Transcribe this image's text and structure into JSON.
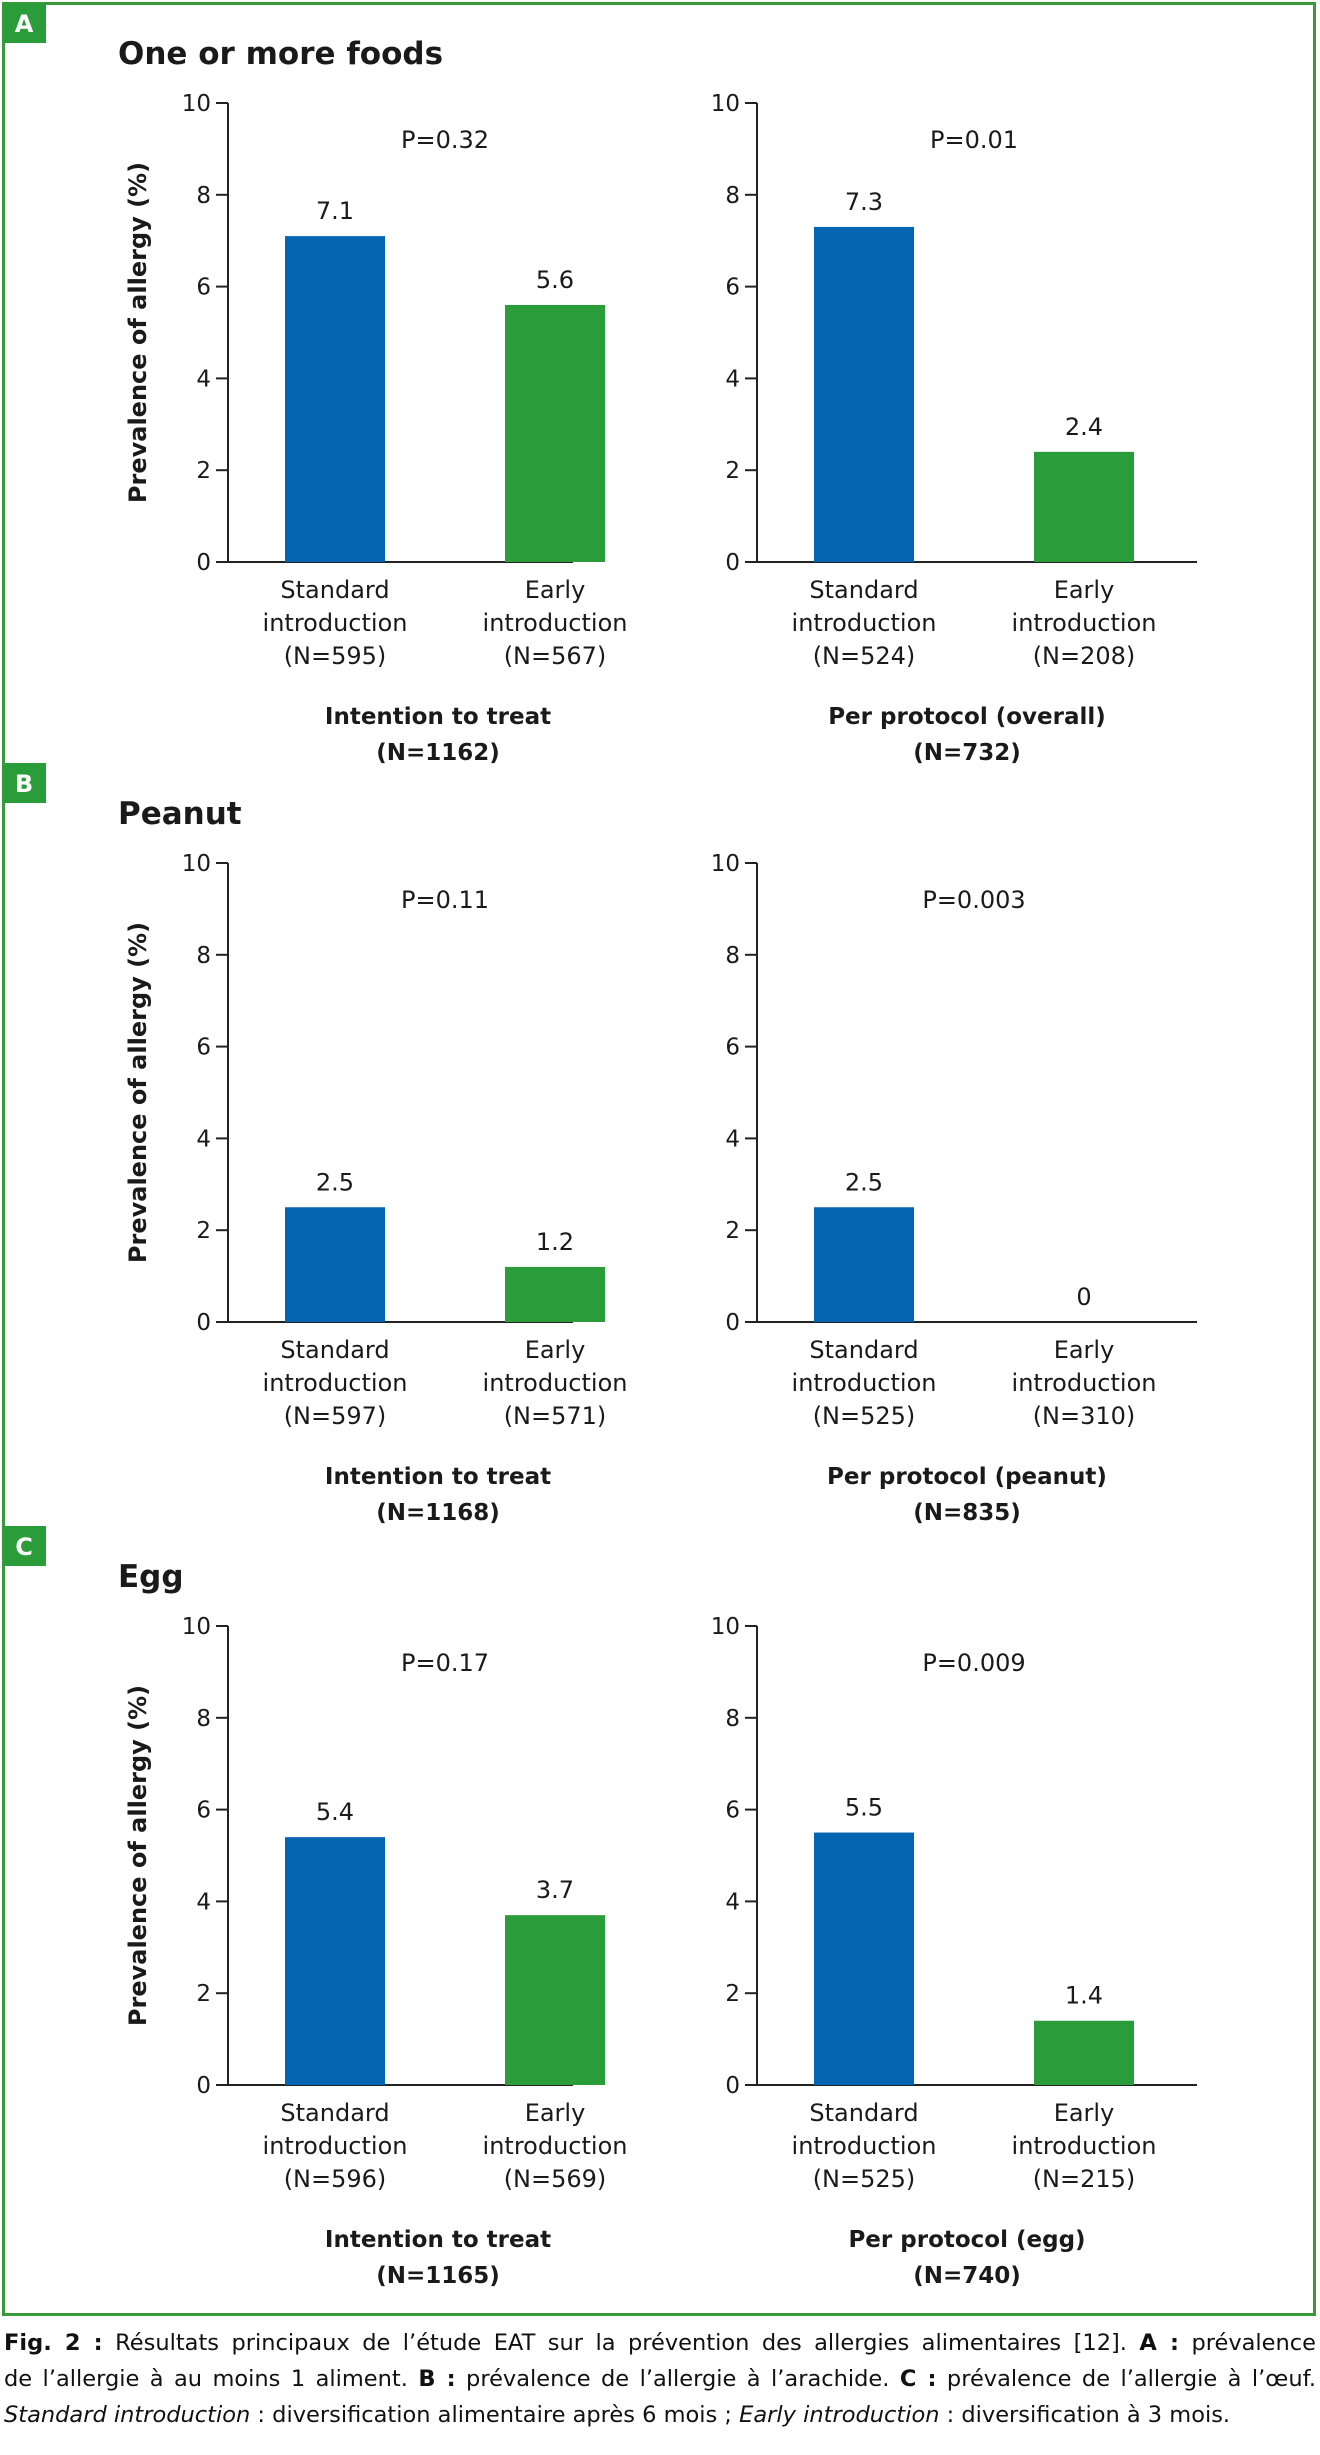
{
  "colors": {
    "standard": "#0565b3",
    "early": "#2b9c3a",
    "frame": "#3a9a3a",
    "badge": "#2b9c3a"
  },
  "chart_data": [
    {
      "panel": "A",
      "title": "One or more foods",
      "type": "bar",
      "ylabel": "Prevalence of allergy (%)",
      "ylim": [
        0,
        10
      ],
      "yticks": [
        0,
        2,
        4,
        6,
        8,
        10
      ],
      "subplots": [
        {
          "pvalue": "P=0.32",
          "group_title": [
            "Intention to treat",
            "(N=1162)"
          ],
          "bars": [
            {
              "label": [
                "Standard",
                "introduction",
                "(N=595)"
              ],
              "value": 7.1,
              "value_label": "7.1",
              "series": "standard"
            },
            {
              "label": [
                "Early",
                "introduction",
                "(N=567)"
              ],
              "value": 5.6,
              "value_label": "5.6",
              "series": "early"
            }
          ]
        },
        {
          "pvalue": "P=0.01",
          "group_title": [
            "Per protocol (overall)",
            "(N=732)"
          ],
          "bars": [
            {
              "label": [
                "Standard",
                "introduction",
                "(N=524)"
              ],
              "value": 7.3,
              "value_label": "7.3",
              "series": "standard"
            },
            {
              "label": [
                "Early",
                "introduction",
                "(N=208)"
              ],
              "value": 2.4,
              "value_label": "2.4",
              "series": "early"
            }
          ]
        }
      ]
    },
    {
      "panel": "B",
      "title": "Peanut",
      "type": "bar",
      "ylabel": "Prevalence of allergy (%)",
      "ylim": [
        0,
        10
      ],
      "yticks": [
        0,
        2,
        4,
        6,
        8,
        10
      ],
      "subplots": [
        {
          "pvalue": "P=0.11",
          "group_title": [
            "Intention to treat",
            "(N=1168)"
          ],
          "bars": [
            {
              "label": [
                "Standard",
                "introduction",
                "(N=597)"
              ],
              "value": 2.5,
              "value_label": "2.5",
              "series": "standard"
            },
            {
              "label": [
                "Early",
                "introduction",
                "(N=571)"
              ],
              "value": 1.2,
              "value_label": "1.2",
              "series": "early"
            }
          ]
        },
        {
          "pvalue": "P=0.003",
          "group_title": [
            "Per protocol (peanut)",
            "(N=835)"
          ],
          "bars": [
            {
              "label": [
                "Standard",
                "introduction",
                "(N=525)"
              ],
              "value": 2.5,
              "value_label": "2.5",
              "series": "standard"
            },
            {
              "label": [
                "Early",
                "introduction",
                "(N=310)"
              ],
              "value": 0,
              "value_label": "0",
              "series": "early"
            }
          ]
        }
      ]
    },
    {
      "panel": "C",
      "title": "Egg",
      "type": "bar",
      "ylabel": "Prevalence of allergy (%)",
      "ylim": [
        0,
        10
      ],
      "yticks": [
        0,
        2,
        4,
        6,
        8,
        10
      ],
      "subplots": [
        {
          "pvalue": "P=0.17",
          "group_title": [
            "Intention to treat",
            "(N=1165)"
          ],
          "bars": [
            {
              "label": [
                "Standard",
                "introduction",
                "(N=596)"
              ],
              "value": 5.4,
              "value_label": "5.4",
              "series": "standard"
            },
            {
              "label": [
                "Early",
                "introduction",
                "(N=569)"
              ],
              "value": 3.7,
              "value_label": "3.7",
              "series": "early"
            }
          ]
        },
        {
          "pvalue": "P=0.009",
          "group_title": [
            "Per protocol (egg)",
            "(N=740)"
          ],
          "bars": [
            {
              "label": [
                "Standard",
                "introduction",
                "(N=525)"
              ],
              "value": 5.5,
              "value_label": "5.5",
              "series": "standard"
            },
            {
              "label": [
                "Early",
                "introduction",
                "(N=215)"
              ],
              "value": 1.4,
              "value_label": "1.4",
              "series": "early"
            }
          ]
        }
      ]
    }
  ],
  "caption": {
    "fig_label": "Fig. 2 :",
    "line1_text": " Résultats principaux de l’étude EAT sur la prévention des allergies alimentaires [12]. ",
    "a_label": "A :",
    "line1_end": " prévalence",
    "line2_start": "de l’allergie à au moins 1 aliment. ",
    "b_label": "B :",
    "line2_mid": " prévalence de l’allergie à l’arachide. ",
    "c_label": "C :",
    "line2_end": " prévalence de l’allergie à l’œuf.",
    "std_term": "Standard introduction",
    "std_def": " : diversification alimentaire après 6 mois ; ",
    "early_term": "Early introduction",
    "early_def": " : diversification à 3 mois."
  }
}
